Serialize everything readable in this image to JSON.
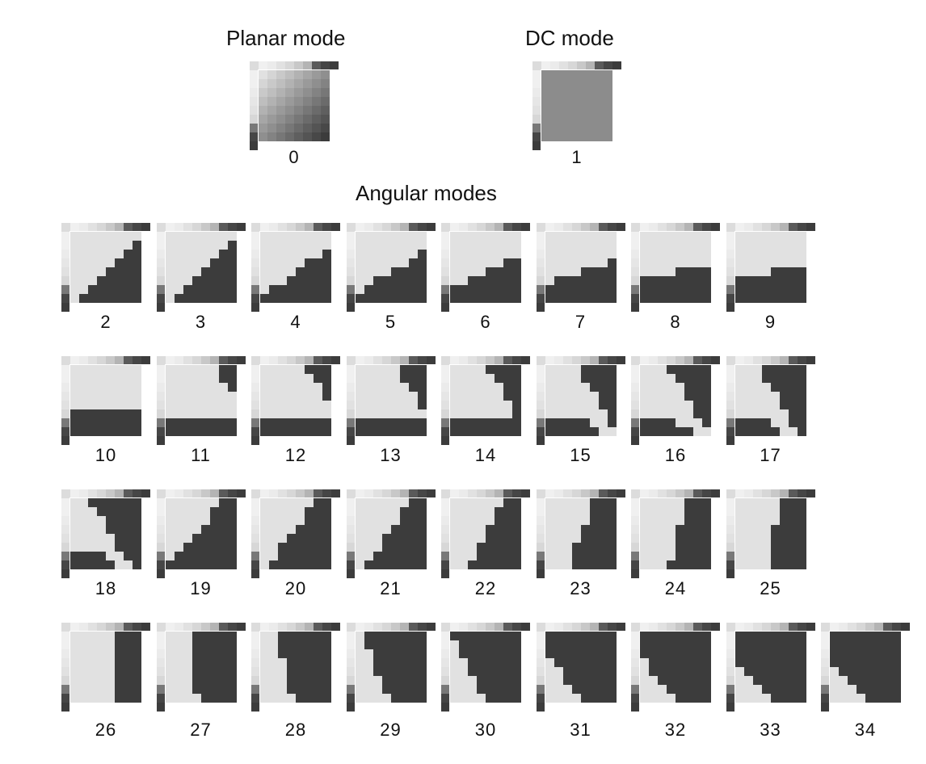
{
  "headings": {
    "planar": "Planar mode",
    "dc": "DC mode",
    "angular": "Angular modes"
  },
  "planar": {
    "label": "0"
  },
  "dc": {
    "label": "1"
  },
  "angular": {
    "rows": [
      {
        "modes": [
          "2",
          "3",
          "4",
          "5",
          "6",
          "7",
          "8",
          "9"
        ]
      },
      {
        "modes": [
          "10",
          "11",
          "12",
          "13",
          "14",
          "15",
          "16",
          "17"
        ]
      },
      {
        "modes": [
          "18",
          "19",
          "20",
          "21",
          "22",
          "23",
          "24",
          "25"
        ]
      },
      {
        "modes": [
          "26",
          "27",
          "28",
          "29",
          "30",
          "31",
          "32",
          "33",
          "34"
        ]
      }
    ]
  },
  "colors": {
    "dark": "#3a3a3a",
    "light": "#e8e8e8",
    "mid": "#8c8c8c",
    "ref": "#4a4a4a"
  }
}
